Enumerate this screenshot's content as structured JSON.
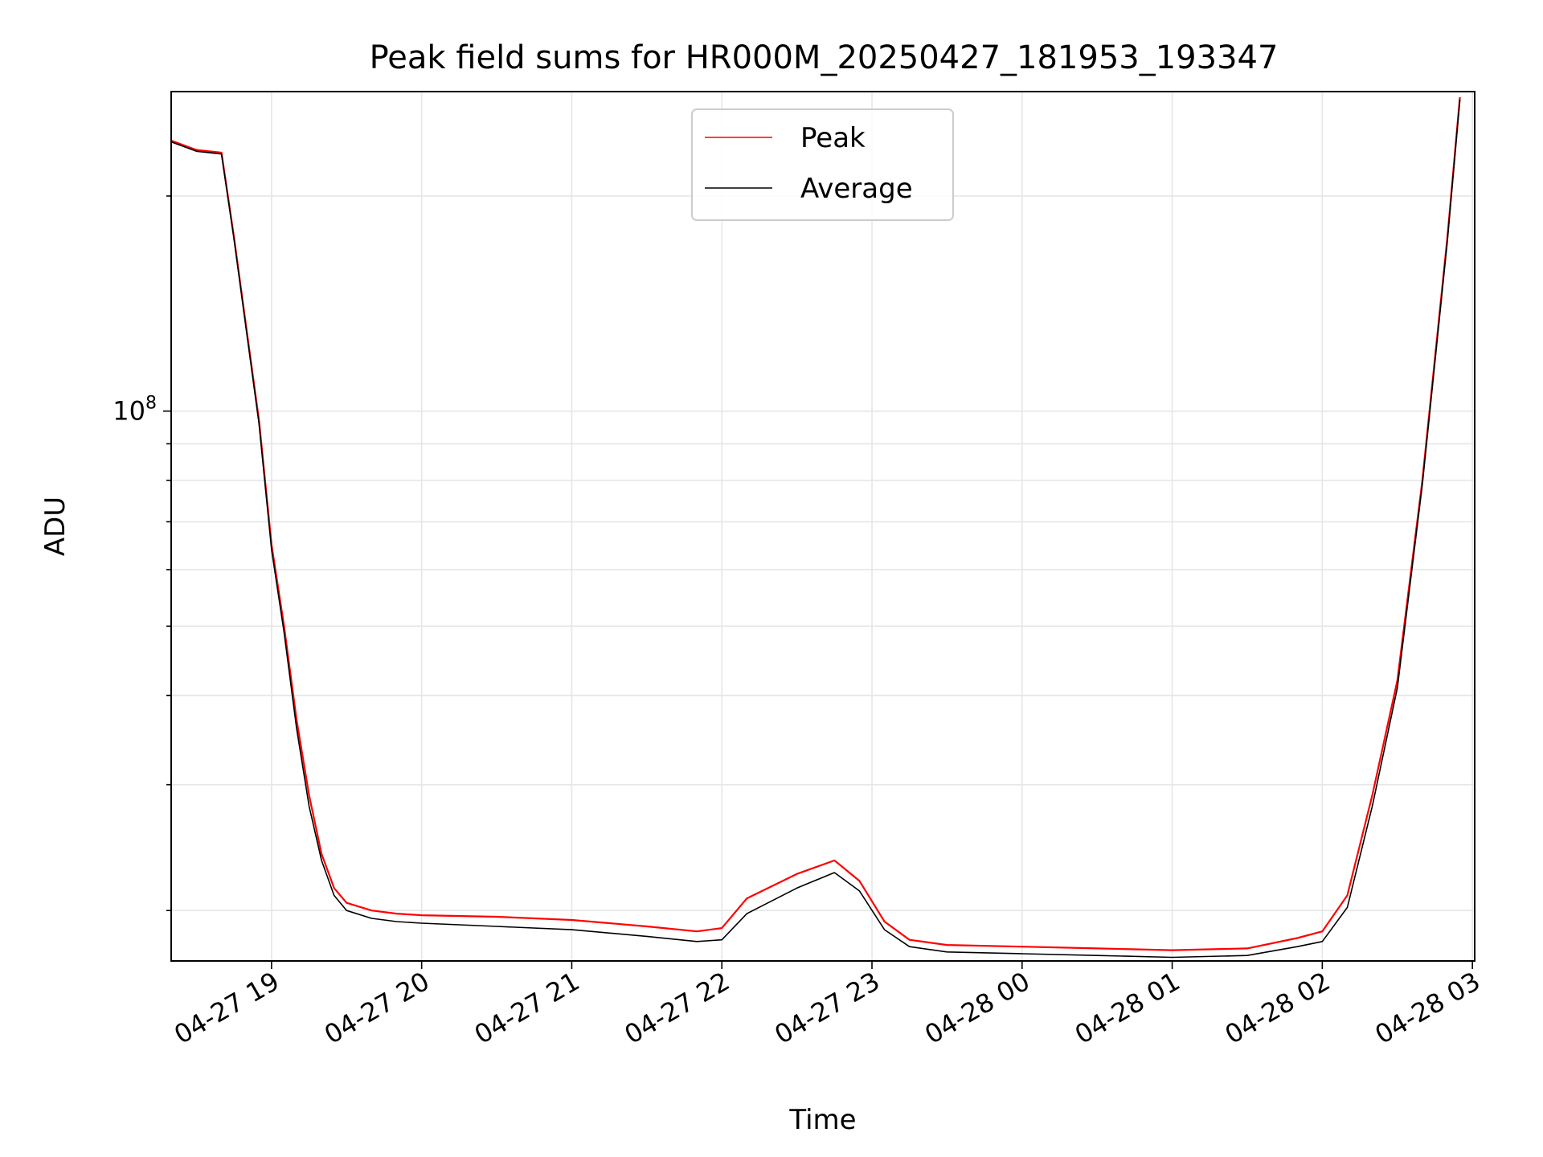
{
  "chart_data": {
    "type": "line",
    "title": "Peak field sums for HR000M_20250427_181953_193347",
    "xlabel": "Time",
    "ylabel": "ADU",
    "y_scale": "log",
    "y_major_tick_label": "10^8",
    "ylim": [
      17000000,
      280000000
    ],
    "xlim": [
      "2025-04-27 18:19:53",
      "2025-04-28 03:00:00"
    ],
    "x_ticks": [
      "04-27 19",
      "04-27 20",
      "04-27 21",
      "04-27 22",
      "04-27 23",
      "04-28 00",
      "04-28 01",
      "04-28 02",
      "04-28 03"
    ],
    "grid": true,
    "legend_position": "upper center",
    "series": [
      {
        "name": "Peak",
        "color": "#ff0000",
        "x": [
          "2025-04-27 18:20",
          "2025-04-27 18:30",
          "2025-04-27 18:40",
          "2025-04-27 18:45",
          "2025-04-27 18:50",
          "2025-04-27 18:55",
          "2025-04-27 19:00",
          "2025-04-27 19:05",
          "2025-04-27 19:10",
          "2025-04-27 19:15",
          "2025-04-27 19:20",
          "2025-04-27 19:25",
          "2025-04-27 19:30",
          "2025-04-27 19:40",
          "2025-04-27 19:50",
          "2025-04-27 20:00",
          "2025-04-27 20:30",
          "2025-04-27 21:00",
          "2025-04-27 21:30",
          "2025-04-27 21:50",
          "2025-04-27 22:00",
          "2025-04-27 22:10",
          "2025-04-27 22:30",
          "2025-04-27 22:45",
          "2025-04-27 22:55",
          "2025-04-27 23:05",
          "2025-04-27 23:15",
          "2025-04-27 23:30",
          "2025-04-28 00:00",
          "2025-04-28 00:30",
          "2025-04-28 01:00",
          "2025-04-28 01:30",
          "2025-04-28 01:50",
          "2025-04-28 02:00",
          "2025-04-28 02:10",
          "2025-04-28 02:20",
          "2025-04-28 02:30",
          "2025-04-28 02:40",
          "2025-04-28 02:50",
          "2025-04-28 02:55"
        ],
        "values": [
          239000000,
          232000000,
          230000000,
          175000000,
          130000000,
          97000000,
          65000000,
          50000000,
          37000000,
          29000000,
          24000000,
          21500000,
          20500000,
          20000000,
          19800000,
          19700000,
          19600000,
          19400000,
          19000000,
          18700000,
          18900000,
          20800000,
          22500000,
          23500000,
          22000000,
          19300000,
          18200000,
          17900000,
          17800000,
          17700000,
          17600000,
          17700000,
          18300000,
          18700000,
          21000000,
          29000000,
          42000000,
          80000000,
          175000000,
          275000000
        ]
      },
      {
        "name": "Average",
        "color": "#000000",
        "x": [
          "2025-04-27 18:20",
          "2025-04-27 18:30",
          "2025-04-27 18:40",
          "2025-04-27 18:45",
          "2025-04-27 18:50",
          "2025-04-27 18:55",
          "2025-04-27 19:00",
          "2025-04-27 19:05",
          "2025-04-27 19:10",
          "2025-04-27 19:15",
          "2025-04-27 19:20",
          "2025-04-27 19:25",
          "2025-04-27 19:30",
          "2025-04-27 19:40",
          "2025-04-27 19:50",
          "2025-04-27 20:00",
          "2025-04-27 20:30",
          "2025-04-27 21:00",
          "2025-04-27 21:30",
          "2025-04-27 21:50",
          "2025-04-27 22:00",
          "2025-04-27 22:10",
          "2025-04-27 22:30",
          "2025-04-27 22:45",
          "2025-04-27 22:55",
          "2025-04-27 23:05",
          "2025-04-27 23:15",
          "2025-04-27 23:30",
          "2025-04-28 00:00",
          "2025-04-28 00:30",
          "2025-04-28 01:00",
          "2025-04-28 01:30",
          "2025-04-28 01:50",
          "2025-04-28 02:00",
          "2025-04-28 02:10",
          "2025-04-28 02:20",
          "2025-04-28 02:30",
          "2025-04-28 02:40",
          "2025-04-28 02:50",
          "2025-04-28 02:55"
        ],
        "values": [
          238000000,
          231000000,
          229000000,
          174000000,
          129000000,
          96000000,
          64000000,
          49000000,
          36000000,
          28000000,
          23500000,
          21000000,
          20000000,
          19500000,
          19300000,
          19200000,
          19000000,
          18800000,
          18400000,
          18100000,
          18200000,
          19800000,
          21500000,
          22600000,
          21300000,
          18800000,
          17800000,
          17500000,
          17400000,
          17300000,
          17200000,
          17300000,
          17800000,
          18100000,
          20200000,
          28000000,
          41000000,
          79000000,
          173000000,
          273000000
        ]
      }
    ]
  }
}
